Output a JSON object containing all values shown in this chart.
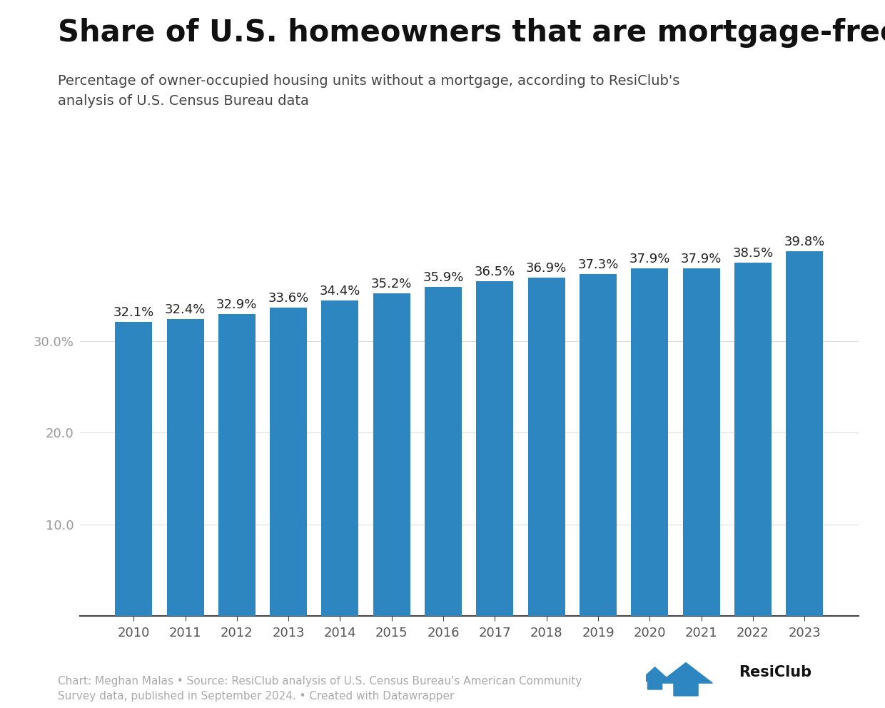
{
  "title": "Share of U.S. homeowners that are mortgage-free",
  "subtitle": "Percentage of owner-occupied housing units without a mortgage, according to ResiClub's\nanalysis of U.S. Census Bureau data",
  "years": [
    2010,
    2011,
    2012,
    2013,
    2014,
    2015,
    2016,
    2017,
    2018,
    2019,
    2020,
    2021,
    2022,
    2023
  ],
  "values": [
    32.1,
    32.4,
    32.9,
    33.6,
    34.4,
    35.2,
    35.9,
    36.5,
    36.9,
    37.3,
    37.9,
    37.9,
    38.5,
    39.8
  ],
  "labels": [
    "32.1%",
    "32.4%",
    "32.9%",
    "33.6%",
    "34.4%",
    "35.2%",
    "35.9%",
    "36.5%",
    "36.9%",
    "37.3%",
    "37.9%",
    "37.9%",
    "38.5%",
    "39.8%"
  ],
  "bar_color": "#2e86c0",
  "background_color": "#ffffff",
  "ytick_labels": [
    "30.0%",
    "20.0",
    "10.0"
  ],
  "ytick_values": [
    30.0,
    20.0,
    10.0
  ],
  "ylim": [
    0,
    44
  ],
  "footer_text": "Chart: Meghan Malas • Source: ResiClub analysis of U.S. Census Bureau's American Community\nSurvey data, published in September 2024. • Created with Datawrapper",
  "title_fontsize": 30,
  "subtitle_fontsize": 14,
  "label_fontsize": 13,
  "tick_fontsize": 13,
  "footer_fontsize": 11,
  "resiclub_fontsize": 15
}
